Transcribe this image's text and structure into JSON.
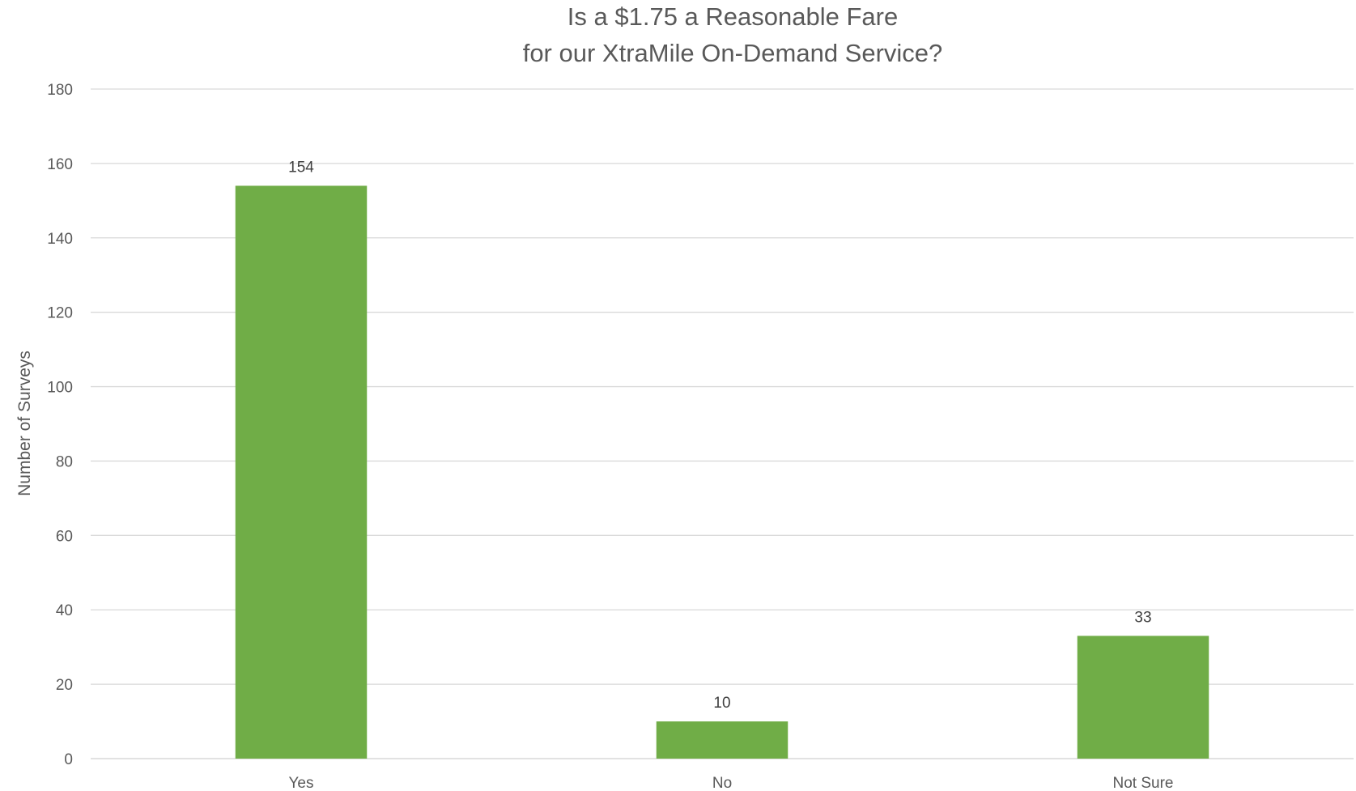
{
  "chart_data": {
    "type": "bar",
    "title": "Is a $1.75 a Reasonable Fare",
    "subtitle": "for our XtraMile On-Demand Service?",
    "xlabel": "",
    "ylabel": "Number of Surveys",
    "categories": [
      "Yes",
      "No",
      "Not Sure"
    ],
    "values": [
      154,
      10,
      33
    ],
    "data_labels": [
      "154",
      "10",
      "33"
    ],
    "ylim": [
      0,
      180
    ],
    "yticks": [
      0,
      20,
      40,
      60,
      80,
      100,
      120,
      140,
      160,
      180
    ],
    "ytick_labels": [
      "0",
      "20",
      "40",
      "60",
      "80",
      "100",
      "120",
      "140",
      "160",
      "180"
    ],
    "grid": true,
    "legend": "none",
    "bar_color": "#70ad47"
  }
}
